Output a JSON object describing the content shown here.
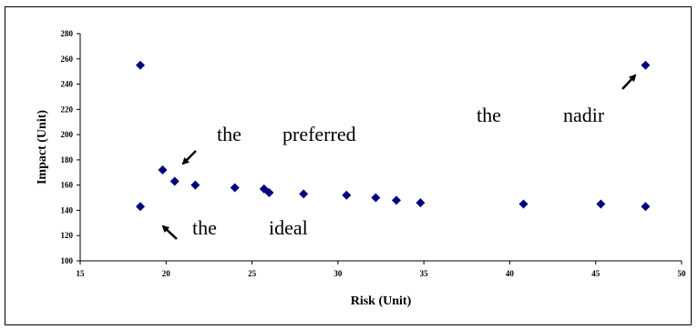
{
  "chart_data": {
    "type": "scatter",
    "xlabel": "Risk (Unit)",
    "ylabel": "Impact (Unit)",
    "xlim": [
      15,
      50
    ],
    "ylim": [
      100,
      280
    ],
    "xticks": [
      "15",
      "20",
      "25",
      "30",
      "35",
      "40",
      "45",
      "50"
    ],
    "yticks": [
      "100",
      "120",
      "140",
      "160",
      "180",
      "200",
      "220",
      "240",
      "260",
      "280"
    ],
    "grid": false,
    "marker_color": "#000080",
    "points": [
      {
        "x": 18.5,
        "y": 255
      },
      {
        "x": 18.5,
        "y": 143
      },
      {
        "x": 19.8,
        "y": 172
      },
      {
        "x": 20.5,
        "y": 163
      },
      {
        "x": 21.7,
        "y": 160
      },
      {
        "x": 24.0,
        "y": 158
      },
      {
        "x": 25.7,
        "y": 157
      },
      {
        "x": 26.0,
        "y": 154
      },
      {
        "x": 28.0,
        "y": 153
      },
      {
        "x": 30.5,
        "y": 152
      },
      {
        "x": 32.2,
        "y": 150
      },
      {
        "x": 33.4,
        "y": 148
      },
      {
        "x": 34.8,
        "y": 146
      },
      {
        "x": 40.8,
        "y": 145
      },
      {
        "x": 45.3,
        "y": 145
      },
      {
        "x": 47.9,
        "y": 255
      },
      {
        "x": 47.9,
        "y": 143
      }
    ],
    "annotations": [
      {
        "words": [
          "the",
          "preferred"
        ]
      },
      {
        "words": [
          "the",
          "nadir"
        ]
      },
      {
        "words": [
          "the",
          "ideal"
        ]
      }
    ]
  }
}
